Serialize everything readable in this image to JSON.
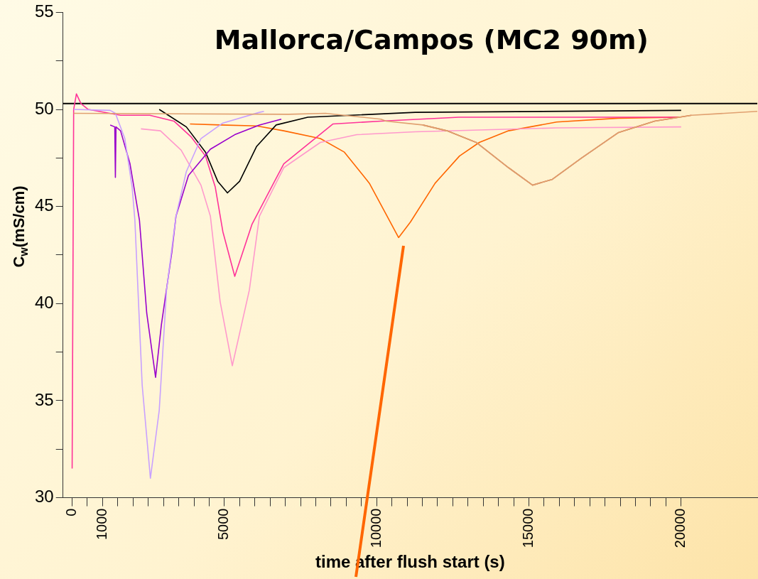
{
  "chart_data": {
    "type": "line",
    "title": "Mallorca/Campos (MC2 90m)",
    "xlabel": "time after flush start (s)",
    "ylabel": "C$_{w}$(mS/cm)",
    "xlim": [
      -300,
      22500
    ],
    "ylim": [
      30,
      55
    ],
    "xticks": [
      0,
      {
        "value": 500,
        "label": null
      },
      1000,
      {
        "value": 1500,
        "label": null
      },
      {
        "value": 2000,
        "label": null
      },
      {
        "value": 2500,
        "label": null
      },
      {
        "value": 3000,
        "label": null
      },
      {
        "value": 3500,
        "label": null
      },
      {
        "value": 4000,
        "label": null
      },
      {
        "value": 4500,
        "label": null
      },
      5000,
      {
        "value": 5500,
        "label": null
      },
      {
        "value": 6000,
        "label": null
      },
      {
        "value": 6500,
        "label": null
      },
      {
        "value": 7000,
        "label": null
      },
      {
        "value": 7500,
        "label": null
      },
      {
        "value": 8000,
        "label": null
      },
      {
        "value": 8500,
        "label": null
      },
      {
        "value": 9000,
        "label": null
      },
      {
        "value": 9500,
        "label": null
      },
      10000,
      {
        "value": 10500,
        "label": null
      },
      {
        "value": 11000,
        "label": null
      },
      {
        "value": 11500,
        "label": null
      },
      {
        "value": 12000,
        "label": null
      },
      {
        "value": 12500,
        "label": null
      },
      {
        "value": 13000,
        "label": null
      },
      {
        "value": 13500,
        "label": null
      },
      {
        "value": 14000,
        "label": null
      },
      {
        "value": 14500,
        "label": null
      },
      15000,
      {
        "value": 15500,
        "label": null
      },
      {
        "value": 16000,
        "label": null
      },
      {
        "value": 16500,
        "label": null
      },
      {
        "value": 17000,
        "label": null
      },
      {
        "value": 17500,
        "label": null
      },
      {
        "value": 18000,
        "label": null
      },
      {
        "value": 18500,
        "label": null
      },
      {
        "value": 19000,
        "label": null
      },
      {
        "value": 19500,
        "label": null
      },
      20000
    ],
    "yticks": [
      30,
      {
        "value": 32.5,
        "label": null
      },
      35,
      {
        "value": 37.5,
        "label": null
      },
      40,
      {
        "value": 42.5,
        "label": null
      },
      45,
      {
        "value": 47.5,
        "label": null
      },
      50,
      {
        "value": 52.5,
        "label": null
      },
      55
    ],
    "marker": "none",
    "line_style": "solid",
    "ref_lines": [
      {
        "axis": "y",
        "value": 50.3,
        "color": "#000000"
      }
    ],
    "series": [
      {
        "color": "#e0a070",
        "x": [
          50,
          7110,
          8320,
          10140,
          10310,
          11510,
          12310,
          13270,
          14330,
          15120,
          15770,
          16730,
          17930,
          19130,
          20340,
          22500
        ],
        "values": [
          49.8,
          49.75,
          49.8,
          49.5,
          49.4,
          49.2,
          48.9,
          48.3,
          47.0,
          46.1,
          46.4,
          47.5,
          48.8,
          49.4,
          49.7,
          49.9
        ]
      },
      {
        "color": "#cc6633",
        "x": [
          11510,
          12310,
          13270,
          14330,
          15120,
          15770,
          16730,
          17930,
          19130,
          20340
        ],
        "values": [
          49.2,
          48.9,
          48.3,
          47.0,
          46.1,
          46.4,
          47.5,
          48.8,
          49.4,
          49.7
        ]
      },
      {
        "color": "#c8a0ff",
        "x": [
          50,
          1250,
          1420,
          1730,
          1970,
          2060,
          2300,
          2570,
          2860,
          3100,
          3410,
          3750,
          4230,
          4950,
          6150,
          6300
        ],
        "values": [
          50.0,
          49.95,
          49.8,
          48.5,
          46.0,
          44.3,
          35.8,
          31.0,
          34.5,
          40.7,
          44.5,
          46.8,
          48.5,
          49.3,
          49.85,
          49.9
        ]
      },
      {
        "color": "#9900cc",
        "x": [
          1250,
          1400,
          1420,
          1440,
          1590,
          1900,
          2210,
          2450,
          2740,
          2930,
          3270,
          3410,
          3820,
          4540,
          5340,
          6150,
          6870
        ],
        "values": [
          49.2,
          49.1,
          46.5,
          49.1,
          48.9,
          47.2,
          44.3,
          39.5,
          36.2,
          38.9,
          42.6,
          44.5,
          46.6,
          47.95,
          48.7,
          49.2,
          49.5
        ]
      },
      {
        "color": "#ff99cc",
        "x": [
          2260,
          2900,
          3580,
          4230,
          4540,
          4860,
          5260,
          5820,
          6150,
          6950,
          8150,
          9350,
          11270,
          15900,
          20000
        ],
        "values": [
          49.0,
          48.9,
          47.9,
          46.1,
          44.5,
          40.1,
          36.8,
          40.7,
          44.5,
          47.0,
          48.3,
          48.7,
          48.85,
          49.05,
          49.1
        ]
      },
      {
        "color": "#000000",
        "x": [
          2860,
          3750,
          4380,
          4780,
          5100,
          5500,
          6060,
          6700,
          7740,
          11270,
          20000
        ],
        "values": [
          50.0,
          49.1,
          47.8,
          46.3,
          45.7,
          46.3,
          48.1,
          49.2,
          49.6,
          49.85,
          49.95
        ]
      },
      {
        "color": "#ff3399",
        "x": [
          0,
          50,
          140,
          290,
          530,
          1590,
          2550,
          3340,
          3900,
          4380,
          4700,
          4950,
          5340,
          5910,
          6950,
          8560,
          10140,
          12700,
          19900
        ],
        "values": [
          31.5,
          50.0,
          50.8,
          50.3,
          50.0,
          49.7,
          49.7,
          49.4,
          48.6,
          47.6,
          46.0,
          43.7,
          41.4,
          44.1,
          47.2,
          49.25,
          49.4,
          49.6,
          49.6
        ]
      },
      {
        "color": "#ff6600",
        "x": [
          3870,
          4860,
          6060,
          6950,
          8150,
          8940,
          9760,
          10310,
          10720,
          11110,
          11920,
          12720,
          13370,
          14330,
          15910,
          17930,
          19930
        ],
        "values": [
          49.25,
          49.2,
          49.15,
          48.9,
          48.5,
          47.8,
          46.2,
          44.6,
          43.4,
          44.2,
          46.2,
          47.6,
          48.3,
          48.9,
          49.35,
          49.55,
          49.6
        ]
      }
    ]
  }
}
